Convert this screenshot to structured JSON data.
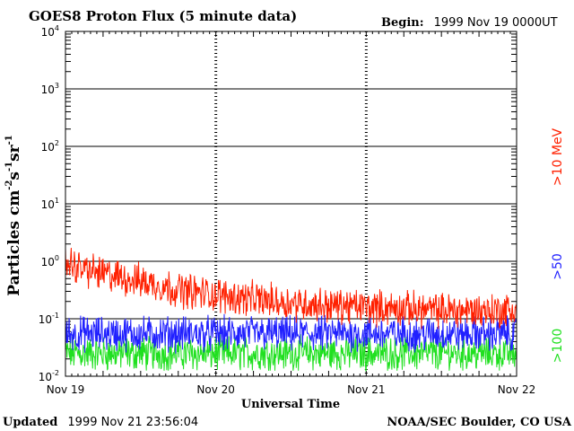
{
  "header": {
    "title": "GOES8 Proton Flux (5 minute data)",
    "begin_label": "Begin:",
    "begin_value": "1999 Nov 19 0000UT"
  },
  "footer": {
    "updated_label": "Updated",
    "updated_value": "1999 Nov 21 23:56:04",
    "credit": "NOAA/SEC Boulder, CO USA"
  },
  "chart_data": {
    "type": "line",
    "title": "GOES8 Proton Flux (5 minute data)",
    "xlabel": "Universal Time",
    "ylabel": "Particles cm-2s-1sr-1",
    "ylabel_parts": {
      "base": "Particles cm",
      "exp1": "-2",
      "s": "s",
      "exp2": "-1",
      "sr": "sr",
      "exp3": "-1"
    },
    "y_scale": "log",
    "ylim": [
      0.01,
      10000
    ],
    "y_ticks": [
      {
        "base": "10",
        "exp": "-2",
        "value": 0.01
      },
      {
        "base": "10",
        "exp": "-1",
        "value": 0.1
      },
      {
        "base": "10",
        "exp": "0",
        "value": 1
      },
      {
        "base": "10",
        "exp": "1",
        "value": 10
      },
      {
        "base": "10",
        "exp": "2",
        "value": 100
      },
      {
        "base": "10",
        "exp": "3",
        "value": 1000
      },
      {
        "base": "10",
        "exp": "4",
        "value": 10000
      }
    ],
    "x_ticks": [
      "Nov 19",
      "Nov 20",
      "Nov 21",
      "Nov 22"
    ],
    "x_days": [
      0,
      1,
      2,
      3
    ],
    "xlim_days": [
      0,
      3
    ],
    "grid": true,
    "energy_labels": [
      {
        "text": ">10 MeV",
        "color": "#ff2000"
      },
      {
        "text": ">50",
        "color": "#2020ff"
      },
      {
        "text": ">100",
        "color": "#20e020"
      }
    ],
    "series": [
      {
        "name": ">10 MeV",
        "color": "#ff2000",
        "x": [
          0,
          0.1,
          0.25,
          0.5,
          0.75,
          1.0,
          1.25,
          1.5,
          1.75,
          2.0,
          2.25,
          2.5,
          2.75,
          3.0
        ],
        "y": [
          1.0,
          0.75,
          0.6,
          0.45,
          0.32,
          0.26,
          0.22,
          0.19,
          0.17,
          0.16,
          0.15,
          0.14,
          0.14,
          0.14
        ]
      },
      {
        "name": ">50",
        "color": "#2020ff",
        "x": [
          0,
          0.5,
          1.0,
          1.5,
          2.0,
          2.5,
          3.0
        ],
        "y": [
          0.055,
          0.055,
          0.055,
          0.055,
          0.055,
          0.055,
          0.055
        ]
      },
      {
        "name": ">100",
        "color": "#20e020",
        "x": [
          0,
          0.5,
          1.0,
          1.5,
          2.0,
          2.5,
          3.0
        ],
        "y": [
          0.025,
          0.025,
          0.025,
          0.025,
          0.025,
          0.025,
          0.025
        ]
      }
    ]
  }
}
